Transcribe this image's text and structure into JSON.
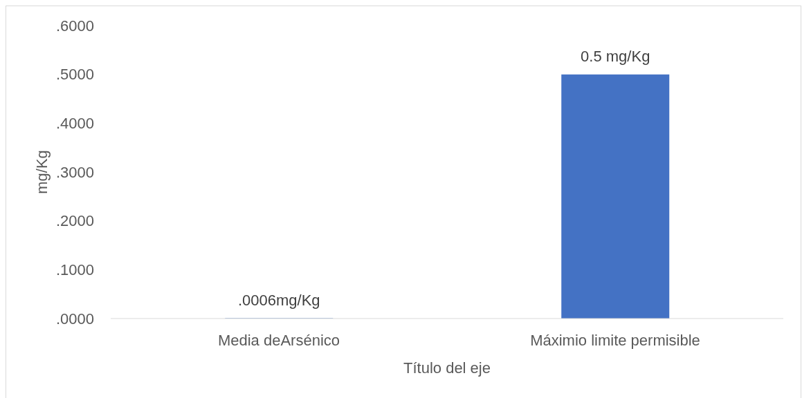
{
  "chart_data": {
    "type": "bar",
    "xlabel": "Título del eje",
    "ylabel": "mg/Kg",
    "categories": [
      "Media deArsénico",
      "Máximio limite permisible"
    ],
    "values": [
      0.0006,
      0.5
    ],
    "value_labels": [
      ".0006mg/Kg",
      "0.5 mg/Kg"
    ],
    "color": "#4472c4",
    "ylim": [
      0,
      0.6
    ],
    "yticks": [
      {
        "value": 0,
        "label": ".0000"
      },
      {
        "value": 0.1,
        "label": ".1000"
      },
      {
        "value": 0.2,
        "label": ".2000"
      },
      {
        "value": 0.3,
        "label": ".3000"
      },
      {
        "value": 0.4,
        "label": ".4000"
      },
      {
        "value": 0.5,
        "label": ".5000"
      },
      {
        "value": 0.6,
        "label": ".6000"
      }
    ]
  }
}
